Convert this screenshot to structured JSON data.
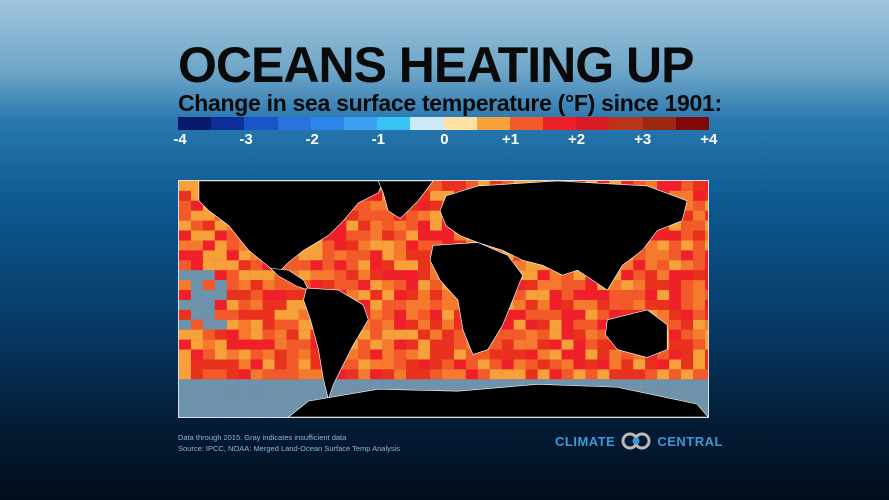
{
  "title": "OCEANS HEATING UP",
  "subtitle": "Change in sea surface temperature (°F) since 1901:",
  "legend": {
    "colors": [
      "#0a1a6a",
      "#0d2f9a",
      "#1a55c8",
      "#2a72de",
      "#2f86ea",
      "#3aa2f0",
      "#37c3f5",
      "#cde9f7",
      "#fde0a5",
      "#f6a13a",
      "#f25a2a",
      "#f0202a",
      "#d81b24",
      "#b8341c",
      "#9a2812",
      "#800a0a"
    ],
    "ticks": [
      "-4",
      "-3",
      "-2",
      "-1",
      "0",
      "+1",
      "+2",
      "+3",
      "+4"
    ]
  },
  "map": {
    "ocean_color": "#f0302a",
    "land_color": "#000000",
    "insufficient_data_color": "#6d93ad"
  },
  "footer": {
    "note": "Data through 2015. Gray indicates insufficient data",
    "source": "Source: IPCC, NOAA: Merged Land-Ocean Surface Temp Analysis"
  },
  "logo": {
    "left": "CLIMATE",
    "right": "CENTRAL"
  }
}
